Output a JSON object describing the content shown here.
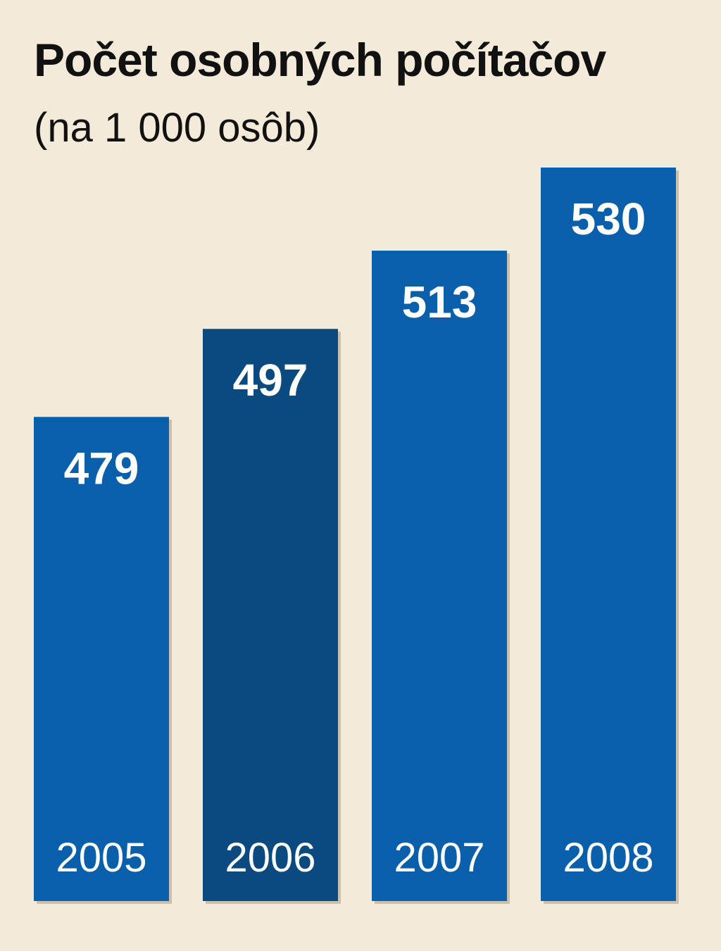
{
  "chart_data": {
    "type": "bar",
    "title": "Počet osobných počítačov",
    "subtitle": "(na 1 000 osôb)",
    "categories": [
      "2005",
      "2006",
      "2007",
      "2008"
    ],
    "values": [
      479,
      497,
      513,
      530
    ],
    "value_labels": [
      "479",
      "497",
      "513",
      "530"
    ],
    "xlabel": "",
    "ylabel": "",
    "ylim": [
      0,
      530
    ],
    "grid": false,
    "legend": "none",
    "colors": {
      "bar": "#0a5fab",
      "highlight_bar": "#0a4a7f",
      "background": "#f3ead9",
      "label": "#ffffff"
    },
    "highlight_index": 1
  }
}
